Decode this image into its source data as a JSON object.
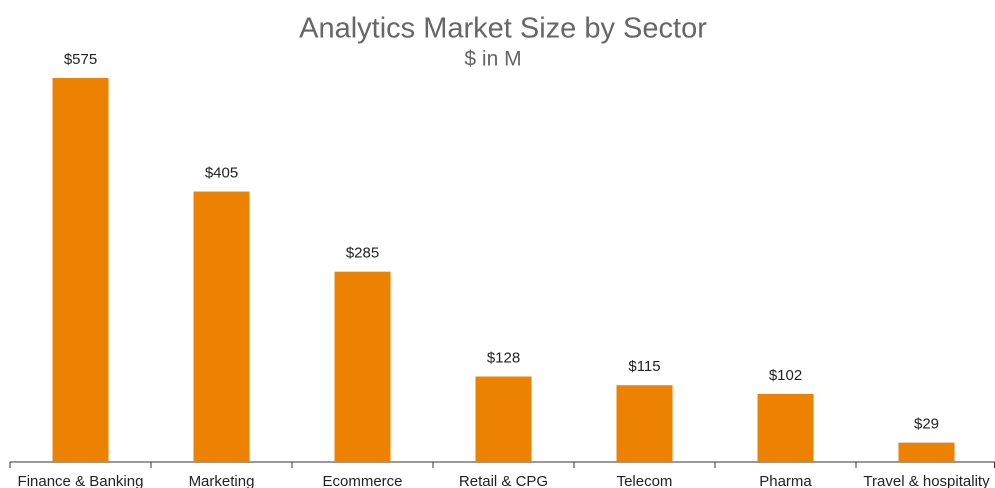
{
  "chart_data": {
    "type": "bar",
    "title": "Analytics Market Size by Sector",
    "subtitle": "$ in M",
    "categories": [
      "Finance & Banking",
      "Marketing",
      "Ecommerce",
      "Retail & CPG",
      "Telecom",
      "Pharma",
      "Travel & hospitality"
    ],
    "values": [
      575,
      405,
      285,
      128,
      115,
      102,
      29
    ],
    "value_labels": [
      "$575",
      "$405",
      "$285",
      "$128",
      "$115",
      "$102",
      "$29"
    ],
    "color": "#ec8200"
  }
}
